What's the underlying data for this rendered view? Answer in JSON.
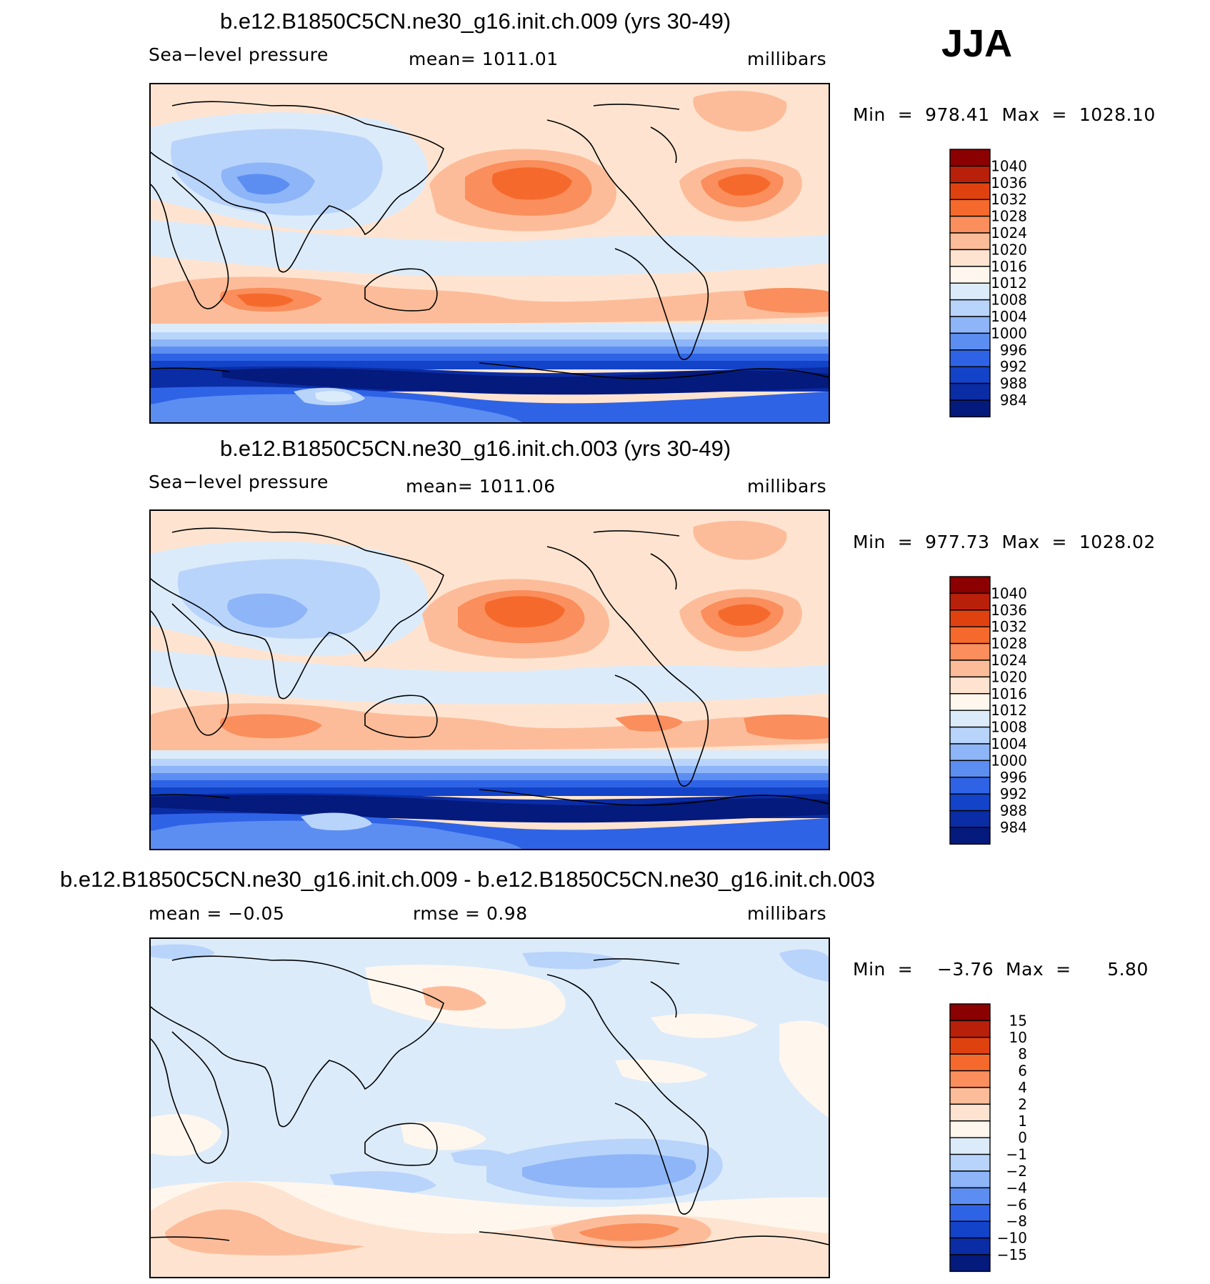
{
  "season": "JJA",
  "panels": [
    {
      "title": "b.e12.B1850C5CN.ne30_g16.init.ch.009 (yrs 30-49)",
      "left_label": "Sea−level pressure",
      "center_label": "mean=  1011.01",
      "units": "millibars",
      "minmax": "Min  =  978.41  Max  =  1028.10",
      "colorbar": {
        "labels": [
          "1040",
          "1036",
          "1032",
          "1028",
          "1024",
          "1020",
          "1016",
          "1012",
          "1008",
          "1004",
          "1000",
          "996",
          "992",
          "988",
          "984"
        ],
        "colors": [
          "#8b0000",
          "#b8200a",
          "#e0420f",
          "#f56a2c",
          "#fa8e5c",
          "#fdbc99",
          "#fee4d0",
          "#fff7ee",
          "#dcebfa",
          "#b9d4fb",
          "#8db5f7",
          "#5c8ef2",
          "#2f63e6",
          "#1243c8",
          "#0a2ca5",
          "#041a7c"
        ]
      },
      "chart_data": {
        "type": "heatmap",
        "title": "b.e12.B1850C5CN.ne30_g16.init.ch.009 (yrs 30-49)",
        "variable": "Sea−level pressure",
        "units": "millibars",
        "mean": 1011.01,
        "min": 978.41,
        "max": 1028.1,
        "contour_levels": [
          984,
          988,
          992,
          996,
          1000,
          1004,
          1008,
          1012,
          1016,
          1020,
          1024,
          1028,
          1032,
          1036,
          1040
        ]
      }
    },
    {
      "title": "b.e12.B1850C5CN.ne30_g16.init.ch.003 (yrs 30-49)",
      "left_label": "Sea−level pressure",
      "center_label": "mean=  1011.06",
      "units": "millibars",
      "minmax": "Min  =  977.73  Max  =  1028.02",
      "colorbar": {
        "labels": [
          "1040",
          "1036",
          "1032",
          "1028",
          "1024",
          "1020",
          "1016",
          "1012",
          "1008",
          "1004",
          "1000",
          "996",
          "992",
          "988",
          "984"
        ],
        "colors": [
          "#8b0000",
          "#b8200a",
          "#e0420f",
          "#f56a2c",
          "#fa8e5c",
          "#fdbc99",
          "#fee4d0",
          "#fff7ee",
          "#dcebfa",
          "#b9d4fb",
          "#8db5f7",
          "#5c8ef2",
          "#2f63e6",
          "#1243c8",
          "#0a2ca5",
          "#041a7c"
        ]
      },
      "chart_data": {
        "type": "heatmap",
        "title": "b.e12.B1850C5CN.ne30_g16.init.ch.003 (yrs 30-49)",
        "variable": "Sea−level pressure",
        "units": "millibars",
        "mean": 1011.06,
        "min": 977.73,
        "max": 1028.02,
        "contour_levels": [
          984,
          988,
          992,
          996,
          1000,
          1004,
          1008,
          1012,
          1016,
          1020,
          1024,
          1028,
          1032,
          1036,
          1040
        ]
      }
    },
    {
      "title": "b.e12.B1850C5CN.ne30_g16.init.ch.009 - b.e12.B1850C5CN.ne30_g16.init.ch.003",
      "left_label": "mean  =    −0.05",
      "center_label": "rmse  =      0.98",
      "units": "millibars",
      "minmax": "Min  =    −3.76  Max  =      5.80",
      "colorbar": {
        "labels": [
          "15",
          "10",
          "8",
          "6",
          "4",
          "2",
          "1",
          "0",
          "−1",
          "−2",
          "−4",
          "−6",
          "−8",
          "−10",
          "−15"
        ],
        "colors": [
          "#8b0000",
          "#b8200a",
          "#e0420f",
          "#f56a2c",
          "#fa8e5c",
          "#fdbc99",
          "#fee4d0",
          "#fff7ee",
          "#dcebfa",
          "#b9d4fb",
          "#8db5f7",
          "#5c8ef2",
          "#2f63e6",
          "#1243c8",
          "#0a2ca5",
          "#041a7c"
        ]
      },
      "chart_data": {
        "type": "heatmap",
        "title": "b.e12.B1850C5CN.ne30_g16.init.ch.009 - b.e12.B1850C5CN.ne30_g16.init.ch.003",
        "units": "millibars",
        "mean": -0.05,
        "rmse": 0.98,
        "min": -3.76,
        "max": 5.8,
        "contour_levels": [
          -15,
          -10,
          -8,
          -6,
          -4,
          -2,
          -1,
          0,
          1,
          2,
          4,
          6,
          8,
          10,
          15
        ]
      }
    }
  ]
}
